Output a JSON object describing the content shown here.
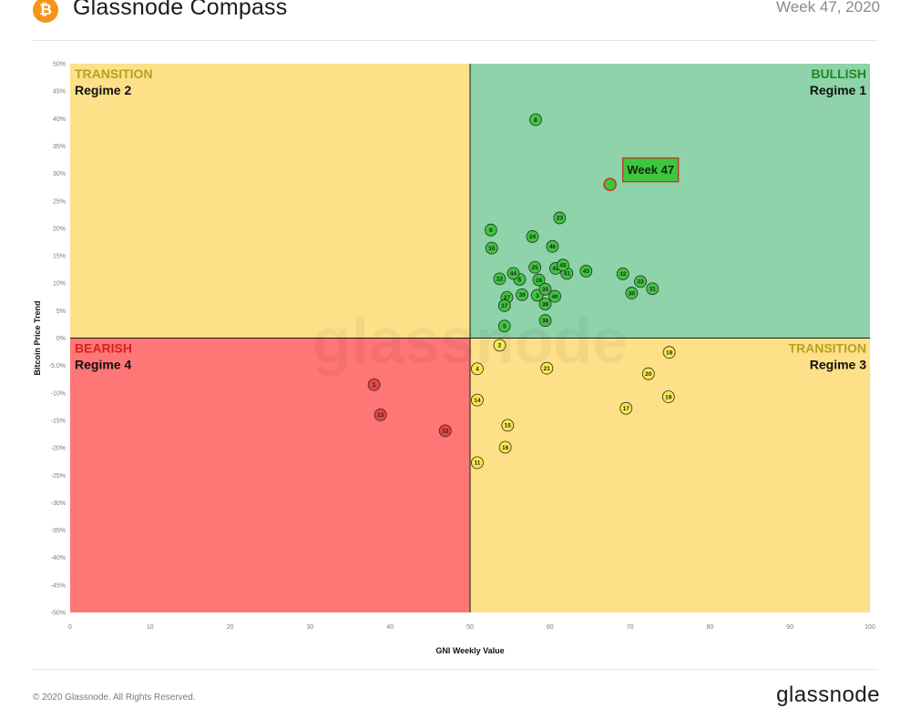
{
  "header": {
    "logo_glyph": "₿",
    "title": "Glassnode Compass",
    "week": "Week 47, 2020"
  },
  "footer": {
    "copyright": "© 2020 Glassnode. All Rights Reserved.",
    "brand": "glassnode"
  },
  "chart_data": {
    "type": "scatter",
    "title": "Glassnode Compass",
    "xlabel": "GNI  Weekly Value",
    "ylabel": "Bitcoin  Price Trend",
    "xlim": [
      0,
      100
    ],
    "ylim": [
      -50,
      50
    ],
    "x_ticks": [
      0,
      10,
      20,
      30,
      40,
      50,
      60,
      70,
      80,
      90,
      100
    ],
    "y_ticks": [
      50,
      45,
      40,
      35,
      30,
      25,
      20,
      15,
      10,
      5,
      0,
      -5,
      -10,
      -15,
      -20,
      -25,
      -30,
      -35,
      -40,
      -45,
      -50
    ],
    "y_tick_labels": [
      "50%",
      "45%",
      "40%",
      "35%",
      "30%",
      "25%",
      "20%",
      "15%",
      "10%",
      "5%",
      "0%",
      "-5.0%",
      "-10%",
      "-15%",
      "-20%",
      "-25%",
      "-30%",
      "-35%",
      "-40%",
      "-45%",
      "-50%"
    ],
    "grid": false,
    "quadrants": [
      {
        "id": "bullish",
        "title": "BULLISH",
        "subtitle": "Regime 1",
        "x": [
          50,
          100
        ],
        "y": [
          0,
          50
        ],
        "fill": "#8ed3a9",
        "title_color": "#1e8a1e"
      },
      {
        "id": "transition-2",
        "title": "TRANSITION",
        "subtitle": "Regime 2",
        "x": [
          0,
          50
        ],
        "y": [
          0,
          50
        ],
        "fill": "#fde088",
        "title_color": "#b8a020"
      },
      {
        "id": "transition-3",
        "title": "TRANSITION",
        "subtitle": "Regime 3",
        "x": [
          50,
          100
        ],
        "y": [
          -50,
          0
        ],
        "fill": "#fde088",
        "title_color": "#b8a020"
      },
      {
        "id": "bearish",
        "title": "BEARISH",
        "subtitle": "Regime 4",
        "x": [
          0,
          50
        ],
        "y": [
          -50,
          0
        ],
        "fill": "#ff7676",
        "title_color": "#d42020"
      }
    ],
    "colors": {
      "bullish": "#3ec63e",
      "transition": "#f7e94b",
      "bearish": "#ea4444",
      "highlight_box": "#3ec63e",
      "highlight_border": "#c0392b"
    },
    "highlight": {
      "label": "Week 47",
      "x": 67.5,
      "y": 28.0
    },
    "points": [
      {
        "label": "1",
        "x": 38.0,
        "y": -8.5
      },
      {
        "label": "2",
        "x": 53.7,
        "y": -1.3
      },
      {
        "label": "3",
        "x": 58.4,
        "y": 7.8
      },
      {
        "label": "4",
        "x": 50.9,
        "y": -5.6
      },
      {
        "label": "5",
        "x": 54.3,
        "y": 2.2
      },
      {
        "label": "6",
        "x": 56.2,
        "y": 10.7
      },
      {
        "label": "8",
        "x": 58.2,
        "y": 39.8
      },
      {
        "label": "9",
        "x": 52.6,
        "y": 19.7
      },
      {
        "label": "10",
        "x": 52.7,
        "y": 16.4
      },
      {
        "label": "11",
        "x": 50.9,
        "y": -22.7
      },
      {
        "label": "12",
        "x": 46.9,
        "y": -16.9
      },
      {
        "label": "13",
        "x": 38.8,
        "y": -14.0
      },
      {
        "label": "14",
        "x": 50.9,
        "y": -11.3
      },
      {
        "label": "15",
        "x": 54.7,
        "y": -15.9
      },
      {
        "label": "16",
        "x": 54.4,
        "y": -19.9
      },
      {
        "label": "17",
        "x": 69.5,
        "y": -12.8
      },
      {
        "label": "18",
        "x": 74.9,
        "y": -2.6
      },
      {
        "label": "19",
        "x": 74.8,
        "y": -10.7
      },
      {
        "label": "20",
        "x": 72.3,
        "y": -6.5
      },
      {
        "label": "21",
        "x": 59.6,
        "y": -5.5
      },
      {
        "label": "22",
        "x": 53.7,
        "y": 10.8
      },
      {
        "label": "23",
        "x": 61.2,
        "y": 21.9
      },
      {
        "label": "24",
        "x": 57.8,
        "y": 18.5
      },
      {
        "label": "25",
        "x": 58.1,
        "y": 12.9
      },
      {
        "label": "27",
        "x": 54.6,
        "y": 7.4
      },
      {
        "label": "28",
        "x": 58.6,
        "y": 10.6
      },
      {
        "label": "30",
        "x": 70.2,
        "y": 8.2
      },
      {
        "label": "31",
        "x": 72.8,
        "y": 9.0
      },
      {
        "label": "32",
        "x": 69.1,
        "y": 11.7
      },
      {
        "label": "33",
        "x": 71.3,
        "y": 10.3
      },
      {
        "label": "35",
        "x": 59.4,
        "y": 8.9
      },
      {
        "label": "36",
        "x": 59.4,
        "y": 3.2
      },
      {
        "label": "37",
        "x": 54.3,
        "y": 5.9
      },
      {
        "label": "38",
        "x": 59.4,
        "y": 6.2
      },
      {
        "label": "39",
        "x": 56.5,
        "y": 7.9
      },
      {
        "label": "40",
        "x": 60.6,
        "y": 7.6
      },
      {
        "label": "41",
        "x": 62.1,
        "y": 11.8
      },
      {
        "label": "42",
        "x": 60.7,
        "y": 12.7
      },
      {
        "label": "43",
        "x": 64.5,
        "y": 12.2
      },
      {
        "label": "44",
        "x": 55.4,
        "y": 11.8
      },
      {
        "label": "45",
        "x": 61.6,
        "y": 13.3
      },
      {
        "label": "46",
        "x": 60.3,
        "y": 16.7
      }
    ],
    "watermark": "glassnode"
  }
}
